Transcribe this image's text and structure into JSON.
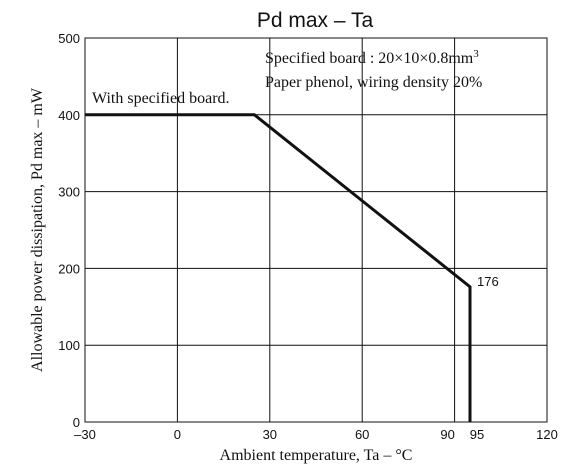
{
  "chart_data": {
    "type": "line",
    "title": "Pd max  –  Ta",
    "xlabel": "Ambient temperature,  Ta – °C",
    "ylabel": "Allowable power dissipation,  Pd max – mW",
    "xlim": [
      -30,
      120
    ],
    "ylim": [
      0,
      500
    ],
    "x_ticks": [
      -30,
      0,
      30,
      60,
      90,
      95,
      120
    ],
    "x_tick_labels": [
      "–30",
      "0",
      "30",
      "60",
      "90",
      "95",
      "120"
    ],
    "y_ticks": [
      0,
      100,
      200,
      300,
      400,
      500
    ],
    "y_tick_labels": [
      "0",
      "100",
      "200",
      "300",
      "400",
      "500"
    ],
    "x_grid": [
      0,
      30,
      60,
      90
    ],
    "y_grid": [
      100,
      200,
      300,
      400
    ],
    "grid": true,
    "series": [
      {
        "x": [
          -30,
          25,
          95,
          95
        ],
        "y": [
          400,
          400,
          176,
          0
        ]
      }
    ],
    "annotations": {
      "curve_label": "With specified board.",
      "point_label": "176",
      "board_line1": "Specified board : 20×10×0.8mm",
      "board_line1_sup": "3",
      "board_line2": "Paper phenol, wiring density 20%"
    }
  }
}
